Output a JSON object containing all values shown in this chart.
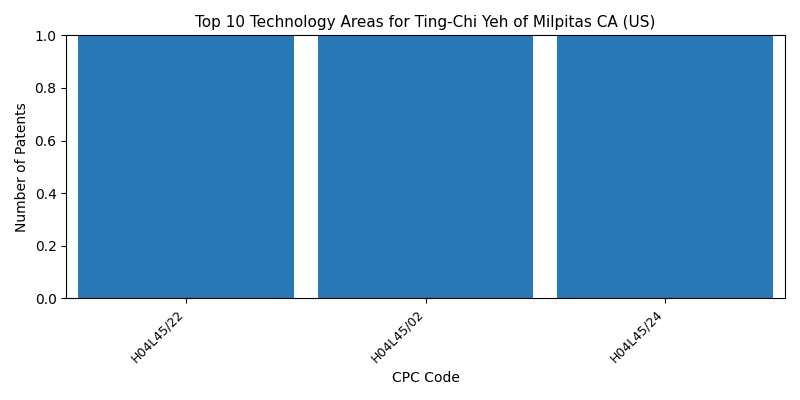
{
  "title": "Top 10 Technology Areas for Ting-Chi Yeh of Milpitas CA (US)",
  "categories": [
    "H04L45/22",
    "H04L45/02",
    "H04L45/24"
  ],
  "values": [
    1,
    1,
    1
  ],
  "bar_color": "#2878b5",
  "bar_width": 0.9,
  "xlabel": "CPC Code",
  "ylabel": "Number of Patents",
  "ylim": [
    0,
    1.0
  ],
  "figsize": [
    8.0,
    4.0
  ],
  "dpi": 100,
  "title_fontsize": 11,
  "label_fontsize": 10,
  "tick_fontsize": 9
}
